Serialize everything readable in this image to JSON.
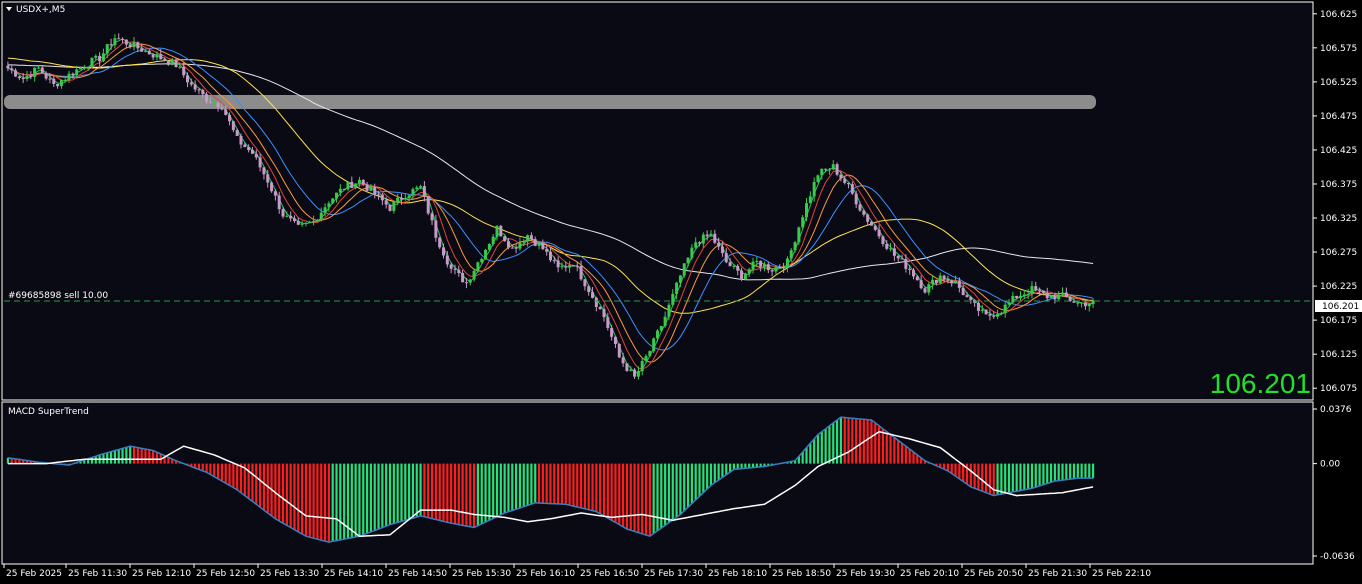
{
  "window": {
    "symbol_title": "USDX+,M5",
    "indicator_title": "MACD SuperTrend",
    "order_label": "#69685898 sell 10.00",
    "current_price": "106.201",
    "big_price": "106.201"
  },
  "colors": {
    "background": "#000000",
    "chart_bg": "#0a0a14",
    "bull_candle": "#3cc84a",
    "bear_candle": "#c79ac7",
    "grid_frame": "#ffffff",
    "ma_white": "#e8e8e8",
    "ma_yellow": "#ffe24a",
    "ma_blue": "#3d8fff",
    "ma_orange": "#ff9a3c",
    "ma_red": "#e0453a",
    "ma_green": "#22c55e",
    "zone": "#8c8c8c",
    "hist_up": "#27e07a",
    "hist_down": "#ff1e1e",
    "big_price": "#22e02a",
    "order_line": "#2a9b4b"
  },
  "price_axis": {
    "labels": [
      "106.625",
      "106.575",
      "106.525",
      "106.475",
      "106.425",
      "106.375",
      "106.325",
      "106.275",
      "106.225",
      "106.175",
      "106.125",
      "106.075"
    ]
  },
  "macd_axis": {
    "labels": [
      "0.0376",
      "0.00",
      "-0.0636"
    ]
  },
  "time_axis": {
    "labels": [
      "25 Feb 2025",
      "25 Feb 11:30",
      "25 Feb 12:10",
      "25 Feb 12:50",
      "25 Feb 13:30",
      "25 Feb 14:10",
      "25 Feb 14:50",
      "25 Feb 15:30",
      "25 Feb 16:10",
      "25 Feb 16:50",
      "25 Feb 17:30",
      "25 Feb 18:10",
      "25 Feb 18:50",
      "25 Feb 19:30",
      "25 Feb 20:10",
      "25 Feb 20:50",
      "25 Feb 21:30",
      "25 Feb 22:10"
    ]
  },
  "chart_data": [
    {
      "type": "candlestick",
      "title": "USDX+,M5",
      "ylim": [
        106.065,
        106.635
      ],
      "price_line": 106.201,
      "order_line": 106.208,
      "zone": [
        106.482,
        106.501
      ],
      "close_path": [
        [
          0,
          106.545
        ],
        [
          4,
          106.53
        ],
        [
          8,
          106.545
        ],
        [
          12,
          106.52
        ],
        [
          16,
          106.535
        ],
        [
          20,
          106.55
        ],
        [
          24,
          106.56
        ],
        [
          28,
          106.59
        ],
        [
          32,
          106.58
        ],
        [
          36,
          106.57
        ],
        [
          40,
          106.56
        ],
        [
          44,
          106.55
        ],
        [
          48,
          106.52
        ],
        [
          52,
          106.5
        ],
        [
          56,
          106.49
        ],
        [
          60,
          106.44
        ],
        [
          64,
          106.42
        ],
        [
          68,
          106.38
        ],
        [
          72,
          106.33
        ],
        [
          76,
          106.31
        ],
        [
          80,
          106.32
        ],
        [
          84,
          106.35
        ],
        [
          88,
          106.37
        ],
        [
          92,
          106.38
        ],
        [
          96,
          106.36
        ],
        [
          100,
          106.34
        ],
        [
          104,
          106.36
        ],
        [
          108,
          106.37
        ],
        [
          112,
          106.3
        ],
        [
          116,
          106.25
        ],
        [
          120,
          106.23
        ],
        [
          124,
          106.27
        ],
        [
          128,
          106.31
        ],
        [
          132,
          106.28
        ],
        [
          136,
          106.3
        ],
        [
          140,
          106.28
        ],
        [
          144,
          106.25
        ],
        [
          148,
          106.26
        ],
        [
          152,
          106.22
        ],
        [
          156,
          106.18
        ],
        [
          160,
          106.12
        ],
        [
          164,
          106.09
        ],
        [
          168,
          106.13
        ],
        [
          172,
          106.18
        ],
        [
          176,
          106.24
        ],
        [
          180,
          106.29
        ],
        [
          184,
          106.3
        ],
        [
          188,
          106.26
        ],
        [
          192,
          106.24
        ],
        [
          196,
          106.26
        ],
        [
          200,
          106.25
        ],
        [
          204,
          106.26
        ],
        [
          208,
          106.33
        ],
        [
          212,
          106.39
        ],
        [
          216,
          106.4
        ],
        [
          220,
          106.37
        ],
        [
          224,
          106.33
        ],
        [
          228,
          106.3
        ],
        [
          232,
          106.27
        ],
        [
          236,
          106.25
        ],
        [
          240,
          106.22
        ],
        [
          244,
          106.24
        ],
        [
          248,
          106.23
        ],
        [
          252,
          106.2
        ],
        [
          256,
          106.18
        ],
        [
          260,
          106.19
        ],
        [
          264,
          106.21
        ],
        [
          268,
          106.22
        ],
        [
          272,
          106.21
        ],
        [
          276,
          106.21
        ],
        [
          280,
          106.2
        ],
        [
          284,
          106.2
        ]
      ],
      "ma_offsets": {
        "green": 3,
        "red": 6,
        "orange": 10,
        "blue": 16,
        "yellow": 35,
        "white": 80
      }
    },
    {
      "type": "bar",
      "title": "MACD SuperTrend",
      "ylim": [
        -0.0636,
        0.0376
      ],
      "histogram_path": [
        [
          0,
          0.004
        ],
        [
          8,
          0.001
        ],
        [
          16,
          -0.001
        ],
        [
          24,
          0.006
        ],
        [
          32,
          0.012
        ],
        [
          38,
          0.009
        ],
        [
          44,
          0.002
        ],
        [
          52,
          -0.006
        ],
        [
          60,
          -0.018
        ],
        [
          70,
          -0.038
        ],
        [
          78,
          -0.05
        ],
        [
          84,
          -0.054
        ],
        [
          92,
          -0.05
        ],
        [
          100,
          -0.042
        ],
        [
          108,
          -0.036
        ],
        [
          116,
          -0.041
        ],
        [
          122,
          -0.044
        ],
        [
          130,
          -0.034
        ],
        [
          138,
          -0.027
        ],
        [
          146,
          -0.028
        ],
        [
          154,
          -0.033
        ],
        [
          162,
          -0.045
        ],
        [
          168,
          -0.05
        ],
        [
          176,
          -0.035
        ],
        [
          184,
          -0.015
        ],
        [
          190,
          -0.004
        ],
        [
          198,
          -0.002
        ],
        [
          206,
          0.002
        ],
        [
          212,
          0.02
        ],
        [
          218,
          0.032
        ],
        [
          226,
          0.03
        ],
        [
          234,
          0.014
        ],
        [
          240,
          0.002
        ],
        [
          246,
          -0.005
        ],
        [
          252,
          -0.016
        ],
        [
          258,
          -0.022
        ],
        [
          262,
          -0.02
        ],
        [
          268,
          -0.017
        ],
        [
          274,
          -0.012
        ],
        [
          280,
          -0.01
        ],
        [
          284,
          -0.01
        ]
      ],
      "trend_path": [
        [
          0,
          0
        ],
        [
          10,
          0
        ],
        [
          20,
          0.003
        ],
        [
          30,
          0.003
        ],
        [
          40,
          0.003
        ],
        [
          46,
          0.012
        ],
        [
          54,
          0.006
        ],
        [
          62,
          -0.003
        ],
        [
          70,
          -0.02
        ],
        [
          78,
          -0.036
        ],
        [
          86,
          -0.038
        ],
        [
          92,
          -0.05
        ],
        [
          100,
          -0.049
        ],
        [
          108,
          -0.032
        ],
        [
          116,
          -0.032
        ],
        [
          122,
          -0.035
        ],
        [
          130,
          -0.037
        ],
        [
          136,
          -0.04
        ],
        [
          142,
          -0.038
        ],
        [
          150,
          -0.034
        ],
        [
          158,
          -0.037
        ],
        [
          166,
          -0.035
        ],
        [
          174,
          -0.039
        ],
        [
          182,
          -0.035
        ],
        [
          190,
          -0.031
        ],
        [
          198,
          -0.028
        ],
        [
          206,
          -0.015
        ],
        [
          212,
          -0.002
        ],
        [
          220,
          0.008
        ],
        [
          228,
          0.022
        ],
        [
          236,
          0.017
        ],
        [
          244,
          0.011
        ],
        [
          252,
          -0.005
        ],
        [
          258,
          -0.018
        ],
        [
          264,
          -0.022
        ],
        [
          270,
          -0.021
        ],
        [
          276,
          -0.02
        ],
        [
          284,
          -0.016
        ]
      ]
    }
  ]
}
